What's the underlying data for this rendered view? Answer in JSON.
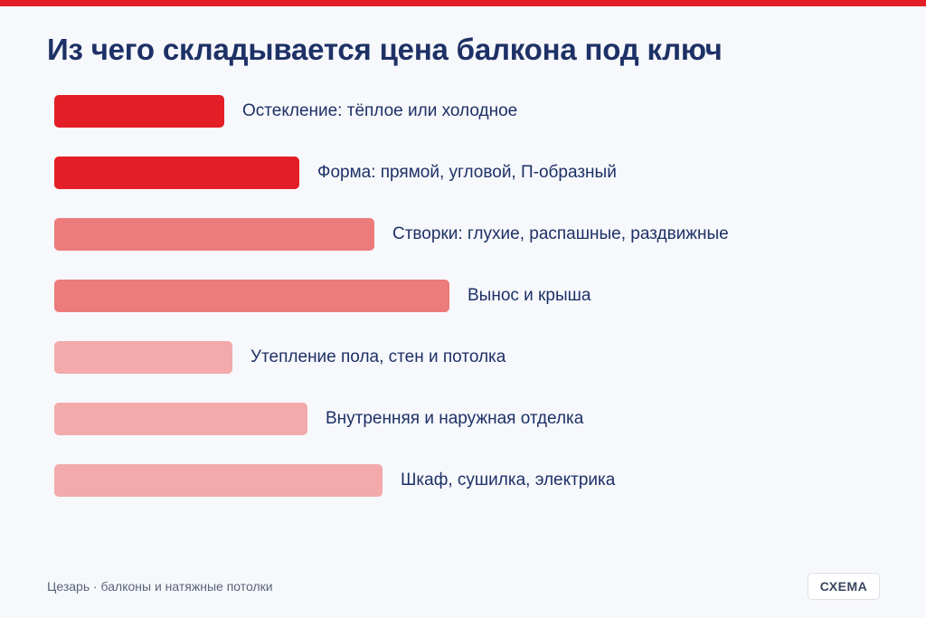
{
  "title": "Из чего складывается цена балкона под ключ",
  "colors": {
    "accent_stripe": "#e41e26",
    "level_strong": "#e41e26",
    "level_medium": "#ec7b7b",
    "level_light": "#f2aaaa"
  },
  "items": [
    {
      "label": "Остекление: тёплое или холодное",
      "level": "strong",
      "value": 0.43
    },
    {
      "label": "Форма: прямой, угловой, П-образный",
      "level": "strong",
      "value": 0.62
    },
    {
      "label": "Створки: глухие, распашные, раздвижные",
      "level": "medium",
      "value": 0.81
    },
    {
      "label": "Вынос и крыша",
      "level": "medium",
      "value": 1.0
    },
    {
      "label": "Утепление пола, стен и потолка",
      "level": "light",
      "value": 0.45
    },
    {
      "label": "Внутренняя и наружная отделка",
      "level": "light",
      "value": 0.64
    },
    {
      "label": "Шкаф, сушилка, электрика",
      "level": "light",
      "value": 0.83
    }
  ],
  "footer": {
    "brand": "Цезарь · балконы и натяжные потолки",
    "badge": "СХЕМА"
  }
}
